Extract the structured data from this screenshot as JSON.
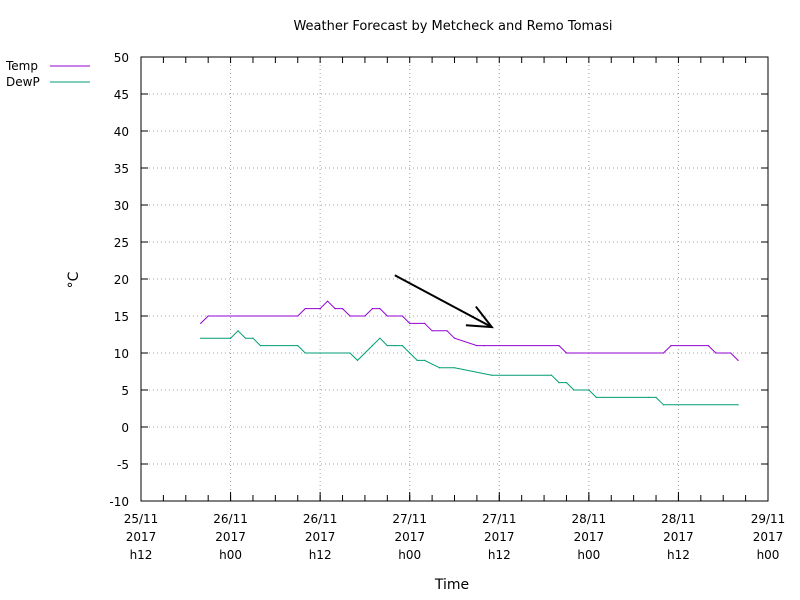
{
  "chart_data": {
    "type": "line",
    "title": "Weather Forecast by Metcheck and Remo Tomasi",
    "xlabel": "Time",
    "ylabel": "°C",
    "ylim": [
      -10,
      50
    ],
    "yticks": [
      "50",
      "45",
      "40",
      "35",
      "30",
      "25",
      "20",
      "15",
      "10",
      "5",
      "0",
      "-5",
      "-10"
    ],
    "xlim": [
      0,
      84
    ],
    "xtick_labels": [
      {
        "x": 0,
        "date": "25/11",
        "year": "2017",
        "hour": "h12"
      },
      {
        "x": 12,
        "date": "26/11",
        "year": "2017",
        "hour": "h00"
      },
      {
        "x": 24,
        "date": "26/11",
        "year": "2017",
        "hour": "h12"
      },
      {
        "x": 36,
        "date": "27/11",
        "year": "2017",
        "hour": "h00"
      },
      {
        "x": 48,
        "date": "27/11",
        "year": "2017",
        "hour": "h12"
      },
      {
        "x": 60,
        "date": "28/11",
        "year": "2017",
        "hour": "h00"
      },
      {
        "x": 72,
        "date": "28/11",
        "year": "2017",
        "hour": "h12"
      },
      {
        "x": 84,
        "date": "29/11",
        "year": "2017",
        "hour": "h00"
      }
    ],
    "grid": true,
    "legend": "top-left",
    "series": [
      {
        "name": "Temp",
        "color": "#9400d3",
        "x": [
          8,
          9,
          13,
          21,
          22,
          24,
          25,
          26,
          27,
          28,
          30,
          31,
          32,
          33,
          34,
          35,
          36,
          38,
          39,
          41,
          42,
          45,
          46,
          56,
          57,
          70,
          71,
          76,
          77,
          79,
          80
        ],
        "y": [
          14,
          15,
          15,
          15,
          16,
          16,
          17,
          16,
          16,
          15,
          15,
          16,
          16,
          15,
          15,
          15,
          14,
          14,
          13,
          13,
          12,
          11,
          11,
          11,
          10,
          10,
          11,
          11,
          10,
          10,
          9
        ]
      },
      {
        "name": "DewP",
        "color": "#009e73",
        "x": [
          8,
          12,
          13,
          14,
          15,
          16,
          21,
          22,
          28,
          29,
          31,
          32,
          33,
          34,
          35,
          36,
          37,
          38,
          40,
          42,
          47,
          55,
          56,
          57,
          58,
          59,
          60,
          61,
          68,
          69,
          70,
          80
        ],
        "y": [
          12,
          12,
          13,
          12,
          12,
          11,
          11,
          10,
          10,
          9,
          11,
          12,
          11,
          11,
          11,
          10,
          9,
          9,
          8,
          8,
          7,
          7,
          6,
          6,
          5,
          5,
          5,
          4,
          4,
          4,
          3,
          3
        ]
      }
    ],
    "annotations": [
      {
        "type": "arrow",
        "color": "#000000",
        "from": [
          34,
          20.5
        ],
        "to": [
          47,
          13.5
        ]
      }
    ]
  }
}
